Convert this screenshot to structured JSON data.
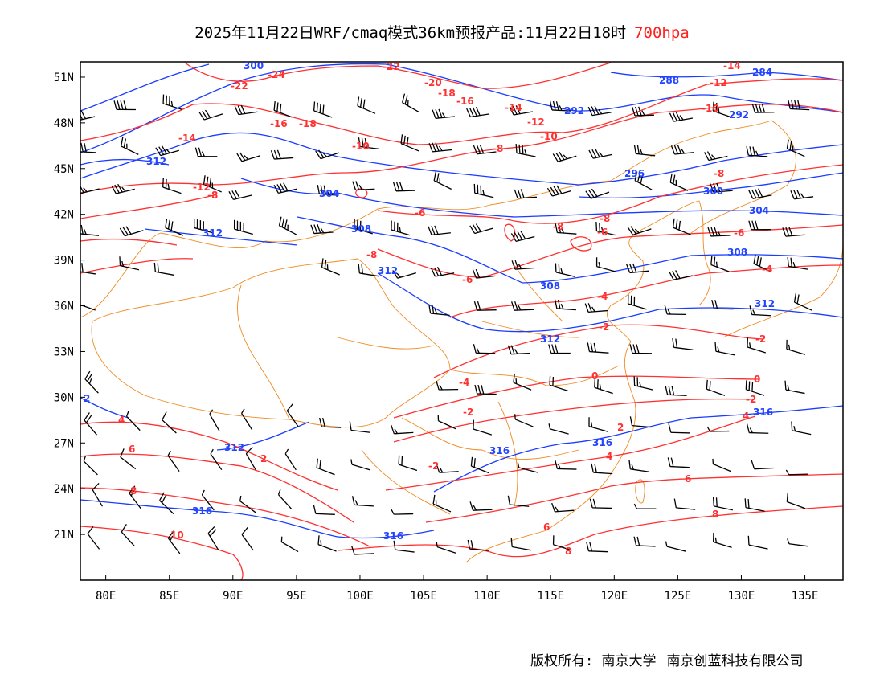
{
  "title": {
    "text": "2025年11月22日WRF/cmaq模式36km预报产品:11月22日18时",
    "level": "700hpa",
    "level_color": "#ff2020"
  },
  "axes": {
    "lon_labels": [
      "80E",
      "85E",
      "90E",
      "95E",
      "100E",
      "105E",
      "110E",
      "115E",
      "120E",
      "125E",
      "130E",
      "135E"
    ],
    "lat_labels": [
      "51N",
      "48N",
      "45N",
      "42N",
      "39N",
      "36N",
      "33N",
      "30N",
      "27N",
      "24N",
      "21N"
    ],
    "lon_range": [
      78,
      138
    ],
    "lat_range": [
      18,
      52
    ]
  },
  "height_contours": {
    "color": "#1a3cff",
    "labels": [
      "300",
      "288",
      "284",
      "292",
      "292",
      "312",
      "296",
      "304",
      "300",
      "304",
      "308",
      "312",
      "308",
      "308",
      "312",
      "312",
      "312",
      "316",
      "316",
      "316",
      "316",
      "316",
      "2"
    ]
  },
  "temperature_contours": {
    "color": "#ff3030",
    "labels": [
      "-22",
      "-24",
      "-22",
      "-20",
      "-18",
      "-16",
      "-14",
      "-12",
      "-10",
      "-14",
      "-12",
      "-10",
      "-8",
      "-8",
      "-8",
      "-8",
      "-6",
      "-4",
      "-2",
      "0",
      "-2",
      "4",
      "-6",
      "-8",
      "-6",
      "-6",
      "-4",
      "-2",
      "0",
      "-4",
      "-2",
      "2",
      "-2",
      "4",
      "6",
      "8",
      "8",
      "10",
      "4",
      "2",
      "6",
      "8",
      "6",
      "-12",
      "-8",
      "-14",
      "-16",
      "-18",
      "-8",
      "-10"
    ]
  },
  "footer": {
    "copyright": "版权所有: 南京大学",
    "company": "南京创蓝科技有限公司"
  }
}
